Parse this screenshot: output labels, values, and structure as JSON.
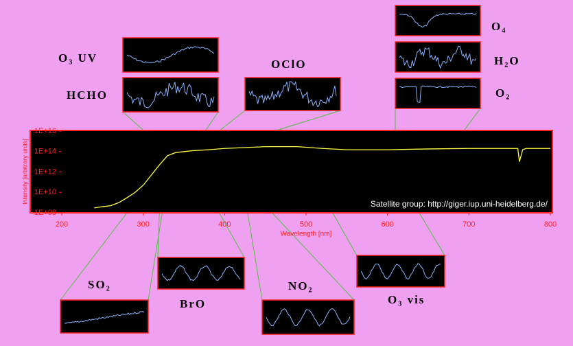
{
  "chart_data": {
    "type": "line",
    "y_label": "Intensity [arbitrary units]",
    "x_label": "Wavelength [nm]",
    "annotation": "Satellite group:  http://giger.iup.uni-heidelberg.de/",
    "log_y": true,
    "xlim": [
      200,
      800
    ],
    "xticks": [
      200,
      300,
      400,
      500,
      600,
      700,
      800
    ],
    "ylim": [
      100000000,
      10000000000000000
    ],
    "yticks": [
      {
        "value": 100000000,
        "label": "1E+08"
      },
      {
        "value": 10000000000,
        "label": "1E+10"
      },
      {
        "value": 1000000000000,
        "label": "1E+12"
      },
      {
        "value": 100000000000000,
        "label": "1E+14"
      },
      {
        "value": 10000000000000000,
        "label": "1E+16"
      }
    ],
    "series": [
      {
        "color": "#ffff40",
        "x": [
          240,
          250,
          260,
          270,
          280,
          290,
          300,
          310,
          320,
          330,
          340,
          360,
          380,
          400,
          450,
          490,
          520,
          550,
          600,
          650,
          700,
          740,
          760,
          762,
          766,
          770,
          800
        ],
        "values": [
          300000000,
          400000000,
          500000000,
          1000000000,
          3000000000,
          10000000000,
          50000000000,
          500000000000,
          5000000000000,
          40000000000000,
          80000000000000,
          120000000000000,
          150000000000000,
          200000000000000,
          300000000000000,
          300000000000000,
          200000000000000,
          150000000000000,
          150000000000000,
          180000000000000,
          200000000000000,
          200000000000000,
          200000000000000,
          10000000000000,
          150000000000000,
          200000000000000,
          200000000000000
        ]
      }
    ],
    "insets": [
      "O₃ UV",
      "HCHO",
      "OClO",
      "O₄",
      "H₂O",
      "O₂",
      "SO₂",
      "BrO",
      "NO₂",
      "O₃ vis"
    ]
  }
}
